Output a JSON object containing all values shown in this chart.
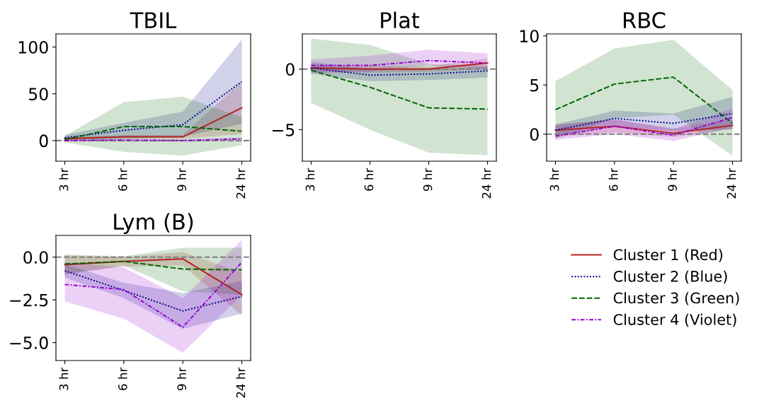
{
  "chart_data": [
    {
      "type": "line",
      "title": "TBIL",
      "categories": [
        "3 hr",
        "6 hr",
        "9 hr",
        "24 hr"
      ],
      "legend": "bottom right",
      "ylim": [
        -22,
        114
      ],
      "yticks": [
        0,
        50,
        100
      ],
      "ref_lines": [
        {
          "axis": "y",
          "value": 0,
          "color": "#808080",
          "line_style": "dashed"
        }
      ],
      "series": [
        {
          "name": "Cluster 1 (Red)",
          "color": "#b22222",
          "line_style": "solid",
          "values": [
            2,
            4,
            4,
            35
          ],
          "lower": [
            0,
            2,
            2,
            7
          ],
          "upper": [
            4,
            6,
            6,
            63
          ]
        },
        {
          "name": "Cluster 2 (Blue)",
          "color": "#00008b",
          "line_style": "dotted",
          "values": [
            3,
            11,
            17,
            63
          ],
          "lower": [
            0,
            2,
            4,
            18
          ],
          "upper": [
            6,
            19,
            31,
            108
          ]
        },
        {
          "name": "Cluster 3 (Green)",
          "color": "#006400",
          "line_style": "dashed",
          "values": [
            1,
            15,
            15,
            10
          ],
          "lower": [
            -2,
            -12,
            -16,
            -5
          ],
          "upper": [
            5,
            41,
            47,
            25
          ]
        },
        {
          "name": "Cluster 4 (Violet)",
          "color": "#9400d3",
          "line_style": "dashdot",
          "values": [
            0,
            0.5,
            0,
            2
          ],
          "lower": [
            -1,
            -0.5,
            -1,
            0
          ],
          "upper": [
            1,
            1.5,
            1,
            3
          ]
        }
      ]
    },
    {
      "type": "line",
      "title": "Plat",
      "categories": [
        "3 hr",
        "6 hr",
        "9 hr",
        "24 hr"
      ],
      "ylim": [
        -7.6,
        2.9
      ],
      "yticks": [
        {
          "value": -5,
          "label": "−5"
        },
        0
      ],
      "ref_lines": [
        {
          "axis": "y",
          "value": 0,
          "color": "#808080",
          "line_style": "dashed"
        }
      ],
      "series": [
        {
          "color": "#b22222",
          "line_style": "solid",
          "values": [
            0.1,
            0,
            0,
            0.5
          ],
          "lower": [
            -0.3,
            -0.3,
            -0.2,
            0
          ],
          "upper": [
            0.3,
            0.3,
            0.2,
            0.9
          ]
        },
        {
          "color": "#00008b",
          "line_style": "dotted",
          "values": [
            0.1,
            -0.5,
            -0.4,
            -0.15
          ],
          "lower": [
            -0.4,
            -1,
            -0.9,
            -0.7
          ],
          "upper": [
            0.6,
            0,
            0,
            0.2
          ]
        },
        {
          "color": "#006400",
          "line_style": "dashed",
          "values": [
            -0.1,
            -1.5,
            -3.2,
            -3.3
          ],
          "lower": [
            -2.8,
            -5,
            -6.9,
            -7.1
          ],
          "upper": [
            2.5,
            2,
            0.4,
            0.3
          ]
        },
        {
          "color": "#9400d3",
          "line_style": "dashdot",
          "values": [
            0.3,
            0.3,
            0.7,
            0.5
          ],
          "lower": [
            -0.3,
            -0.2,
            0.3,
            0
          ],
          "upper": [
            0.8,
            1.1,
            1.6,
            1.3
          ]
        }
      ]
    },
    {
      "type": "line",
      "title": "RBC",
      "categories": [
        "3 hr",
        "6 hr",
        "9 hr",
        "24 hr"
      ],
      "ylim": [
        -2.75,
        10.2
      ],
      "yticks": [
        0,
        5,
        10
      ],
      "ref_lines": [
        {
          "axis": "y",
          "value": 0,
          "color": "#808080",
          "line_style": "dashed"
        }
      ],
      "series": [
        {
          "color": "#b22222",
          "line_style": "solid",
          "values": [
            0.4,
            0.8,
            0.1,
            0.9
          ],
          "lower": [
            -0.3,
            0.2,
            -0.3,
            0.5
          ],
          "upper": [
            1,
            1.5,
            0.6,
            1.5
          ]
        },
        {
          "color": "#00008b",
          "line_style": "dotted",
          "values": [
            0.4,
            1.6,
            1.1,
            2.1
          ],
          "lower": [
            -0.2,
            0.8,
            0.3,
            0.5
          ],
          "upper": [
            1,
            2.4,
            2.1,
            3.8
          ]
        },
        {
          "color": "#006400",
          "line_style": "dashed",
          "values": [
            2.5,
            5.1,
            5.8,
            1.1
          ],
          "lower": [
            -0.5,
            1.6,
            2,
            -2.2
          ],
          "upper": [
            5.4,
            8.7,
            9.6,
            4.5
          ]
        },
        {
          "color": "#9400d3",
          "line_style": "dashdot",
          "values": [
            -0.2,
            0.8,
            -0.1,
            1.7
          ],
          "lower": [
            -0.6,
            0,
            -0.7,
            0.7
          ],
          "upper": [
            0.9,
            1.5,
            0.5,
            2.6
          ]
        }
      ]
    },
    {
      "type": "line",
      "title": "Lym (B)",
      "categories": [
        "3 hr",
        "6 hr",
        "9 hr",
        "24 hr"
      ],
      "ylim": [
        -6.05,
        1.27
      ],
      "yticks": [
        {
          "value": -5,
          "label": "−5.0"
        },
        {
          "value": -2.5,
          "label": "−2.5"
        },
        {
          "value": 0,
          "label": "0.0"
        }
      ],
      "ref_lines": [
        {
          "axis": "y",
          "value": 0,
          "color": "#808080",
          "line_style": "dashed"
        }
      ],
      "series": [
        {
          "color": "#b22222",
          "line_style": "solid",
          "values": [
            -0.45,
            -0.25,
            -0.1,
            -2.2
          ],
          "lower": [
            -1,
            -0.55,
            -0.5,
            -3.4
          ],
          "upper": [
            0.1,
            0,
            0.3,
            -0.9
          ]
        },
        {
          "color": "#00008b",
          "line_style": "dotted",
          "values": [
            -0.8,
            -1.95,
            -3.15,
            -2.3
          ],
          "lower": [
            -1.2,
            -2.4,
            -4.2,
            -3.3
          ],
          "upper": [
            -0.4,
            -1.5,
            -2.1,
            -1.4
          ]
        },
        {
          "color": "#006400",
          "line_style": "dashed",
          "values": [
            -0.4,
            -0.25,
            -0.7,
            -0.75
          ],
          "lower": [
            -1,
            -0.5,
            -2,
            -2.2
          ],
          "upper": [
            0.15,
            0.05,
            0.55,
            0.55
          ]
        },
        {
          "color": "#9400d3",
          "line_style": "dashdot",
          "values": [
            -1.6,
            -1.9,
            -4.1,
            -0.3
          ],
          "lower": [
            -2.6,
            -3.6,
            -5.6,
            -2.2
          ],
          "upper": [
            -0.3,
            -0.6,
            -2.4,
            1.0
          ]
        }
      ]
    }
  ]
}
